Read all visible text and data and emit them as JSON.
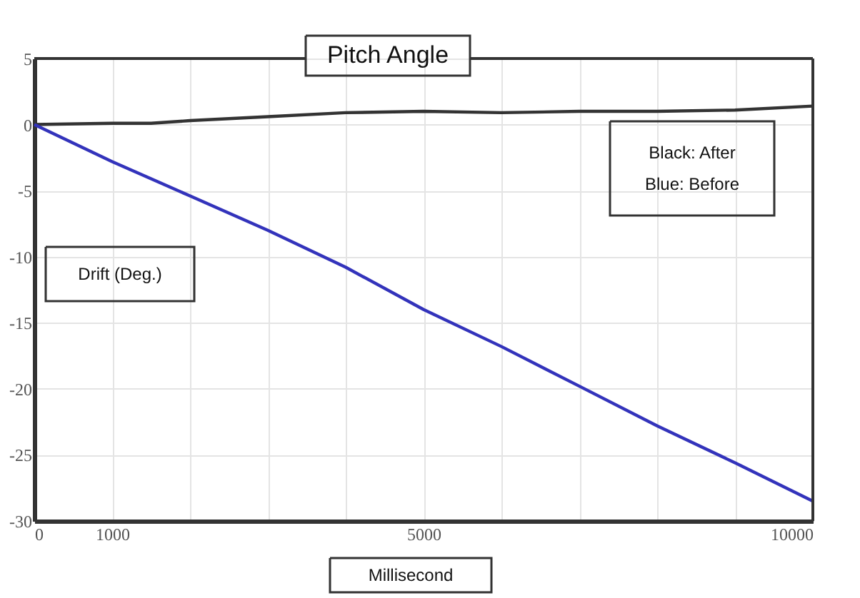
{
  "chart_data": {
    "type": "line",
    "title": "Pitch Angle",
    "xlabel": "Millisecond",
    "ylabel": "Drift (Deg.)",
    "annotations": [
      "Black: After",
      "Blue: Before"
    ],
    "x": [
      0,
      1000,
      1500,
      2000,
      3000,
      4000,
      5000,
      6000,
      7000,
      8000,
      9000,
      10000
    ],
    "series": [
      {
        "color": "#333333",
        "values": [
          0,
          0.1,
          0.1,
          0.3,
          0.6,
          0.9,
          1.0,
          0.9,
          1.0,
          1.0,
          1.1,
          1.4
        ]
      },
      {
        "color": "#3333bb",
        "values": [
          0,
          -2.8,
          -4.1,
          -5.4,
          -8.0,
          -10.8,
          -14.0,
          -16.8,
          -19.8,
          -22.8,
          -25.6,
          -28.5
        ]
      }
    ],
    "xlim": [
      0,
      10000
    ],
    "xticks": [
      0,
      1000,
      {
        "value": 2000,
        "label": null
      },
      {
        "value": 3000,
        "label": null
      },
      {
        "value": 4000,
        "label": null
      },
      5000,
      {
        "value": 6000,
        "label": null
      },
      {
        "value": 7000,
        "label": null
      },
      {
        "value": 8000,
        "label": null
      },
      {
        "value": 9000,
        "label": null
      },
      10000
    ],
    "ylim": [
      -30,
      5
    ],
    "yticks": [
      5,
      0,
      -5,
      -10,
      -15,
      -20,
      -25,
      -30
    ],
    "grid": true,
    "marker": "none",
    "line_style": "solid"
  }
}
